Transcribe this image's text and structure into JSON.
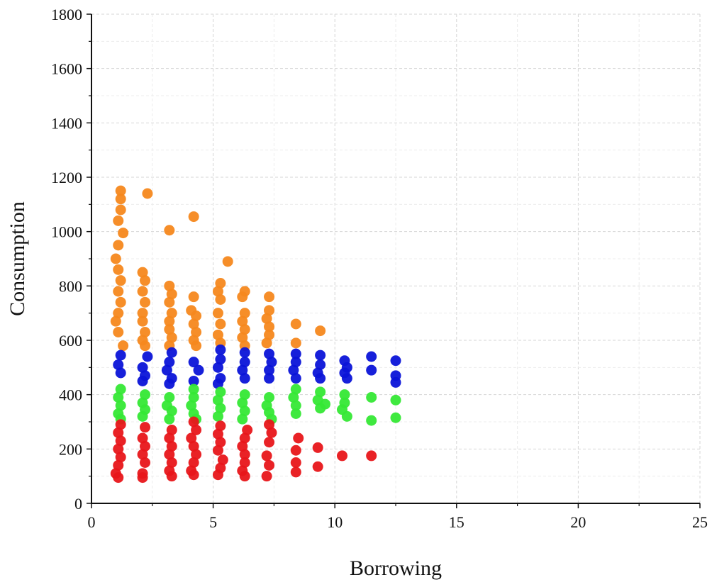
{
  "chart_data": {
    "type": "scatter",
    "title": "",
    "xlabel": "Borrowing",
    "ylabel": "Consumption",
    "xlim": [
      0,
      25
    ],
    "ylim": [
      0,
      1800
    ],
    "xticks": [
      0,
      5,
      10,
      15,
      20,
      25
    ],
    "yticks": [
      0,
      200,
      400,
      600,
      800,
      1000,
      1200,
      1400,
      1600,
      1800
    ],
    "grid": true,
    "legend": "none",
    "series": [
      {
        "color": "#f5881e",
        "points": [
          [
            1.2,
            1150
          ],
          [
            1.2,
            1120
          ],
          [
            1.2,
            1080
          ],
          [
            1.1,
            1040
          ],
          [
            1.3,
            995
          ],
          [
            1.1,
            950
          ],
          [
            1.0,
            900
          ],
          [
            1.1,
            860
          ],
          [
            1.2,
            820
          ],
          [
            1.1,
            780
          ],
          [
            1.2,
            740
          ],
          [
            1.1,
            700
          ],
          [
            1.0,
            670
          ],
          [
            1.1,
            630
          ],
          [
            1.3,
            580
          ],
          [
            2.3,
            1140
          ],
          [
            2.1,
            850
          ],
          [
            2.2,
            820
          ],
          [
            2.1,
            780
          ],
          [
            2.2,
            740
          ],
          [
            2.1,
            700
          ],
          [
            2.1,
            670
          ],
          [
            2.2,
            630
          ],
          [
            2.1,
            600
          ],
          [
            2.2,
            580
          ],
          [
            3.2,
            1005
          ],
          [
            3.2,
            800
          ],
          [
            3.3,
            770
          ],
          [
            3.2,
            740
          ],
          [
            3.3,
            700
          ],
          [
            3.2,
            670
          ],
          [
            3.2,
            640
          ],
          [
            3.3,
            610
          ],
          [
            3.2,
            580
          ],
          [
            4.2,
            1055
          ],
          [
            4.2,
            760
          ],
          [
            4.1,
            710
          ],
          [
            4.3,
            690
          ],
          [
            4.2,
            660
          ],
          [
            4.3,
            630
          ],
          [
            4.2,
            600
          ],
          [
            4.3,
            580
          ],
          [
            5.3,
            810
          ],
          [
            5.2,
            780
          ],
          [
            5.3,
            750
          ],
          [
            5.2,
            700
          ],
          [
            5.3,
            660
          ],
          [
            5.2,
            620
          ],
          [
            5.3,
            590
          ],
          [
            5.6,
            890
          ],
          [
            6.3,
            780
          ],
          [
            6.2,
            760
          ],
          [
            6.3,
            700
          ],
          [
            6.2,
            670
          ],
          [
            6.3,
            640
          ],
          [
            6.2,
            610
          ],
          [
            6.3,
            580
          ],
          [
            7.3,
            760
          ],
          [
            7.3,
            710
          ],
          [
            7.2,
            680
          ],
          [
            7.3,
            650
          ],
          [
            7.3,
            620
          ],
          [
            7.2,
            590
          ],
          [
            8.4,
            660
          ],
          [
            8.4,
            590
          ],
          [
            9.4,
            635
          ]
        ]
      },
      {
        "color": "#0b14d8",
        "points": [
          [
            1.2,
            545
          ],
          [
            1.1,
            510
          ],
          [
            1.2,
            480
          ],
          [
            2.3,
            540
          ],
          [
            2.1,
            500
          ],
          [
            2.2,
            470
          ],
          [
            2.1,
            450
          ],
          [
            3.3,
            555
          ],
          [
            3.2,
            520
          ],
          [
            3.1,
            490
          ],
          [
            3.3,
            460
          ],
          [
            3.2,
            440
          ],
          [
            4.2,
            520
          ],
          [
            4.4,
            490
          ],
          [
            4.2,
            450
          ],
          [
            5.3,
            565
          ],
          [
            5.3,
            530
          ],
          [
            5.2,
            500
          ],
          [
            5.3,
            460
          ],
          [
            5.2,
            440
          ],
          [
            6.3,
            555
          ],
          [
            6.3,
            520
          ],
          [
            6.2,
            490
          ],
          [
            6.3,
            460
          ],
          [
            7.3,
            550
          ],
          [
            7.4,
            520
          ],
          [
            7.3,
            490
          ],
          [
            7.3,
            460
          ],
          [
            8.4,
            550
          ],
          [
            8.4,
            520
          ],
          [
            8.3,
            490
          ],
          [
            8.4,
            460
          ],
          [
            9.4,
            545
          ],
          [
            9.4,
            510
          ],
          [
            9.3,
            480
          ],
          [
            9.4,
            460
          ],
          [
            10.4,
            525
          ],
          [
            10.5,
            500
          ],
          [
            10.4,
            480
          ],
          [
            10.5,
            460
          ],
          [
            11.5,
            540
          ],
          [
            11.5,
            490
          ],
          [
            12.5,
            525
          ],
          [
            12.5,
            470
          ],
          [
            12.5,
            445
          ]
        ]
      },
      {
        "color": "#35e835",
        "points": [
          [
            1.2,
            420
          ],
          [
            1.1,
            390
          ],
          [
            1.2,
            360
          ],
          [
            1.1,
            330
          ],
          [
            1.2,
            310
          ],
          [
            2.2,
            400
          ],
          [
            2.1,
            370
          ],
          [
            2.2,
            345
          ],
          [
            2.1,
            320
          ],
          [
            3.2,
            390
          ],
          [
            3.1,
            360
          ],
          [
            3.3,
            340
          ],
          [
            3.2,
            310
          ],
          [
            4.2,
            420
          ],
          [
            4.2,
            390
          ],
          [
            4.1,
            360
          ],
          [
            4.2,
            330
          ],
          [
            4.3,
            310
          ],
          [
            5.3,
            410
          ],
          [
            5.2,
            380
          ],
          [
            5.3,
            350
          ],
          [
            5.2,
            320
          ],
          [
            6.3,
            400
          ],
          [
            6.2,
            370
          ],
          [
            6.3,
            340
          ],
          [
            6.2,
            310
          ],
          [
            7.3,
            390
          ],
          [
            7.2,
            360
          ],
          [
            7.3,
            335
          ],
          [
            7.4,
            310
          ],
          [
            8.4,
            420
          ],
          [
            8.3,
            390
          ],
          [
            8.4,
            360
          ],
          [
            8.4,
            330
          ],
          [
            9.4,
            410
          ],
          [
            9.3,
            380
          ],
          [
            9.6,
            365
          ],
          [
            9.4,
            350
          ],
          [
            10.4,
            400
          ],
          [
            10.4,
            370
          ],
          [
            10.3,
            345
          ],
          [
            10.5,
            320
          ],
          [
            11.5,
            390
          ],
          [
            11.5,
            305
          ],
          [
            12.5,
            380
          ],
          [
            12.5,
            315
          ]
        ]
      },
      {
        "color": "#e8161a",
        "points": [
          [
            1.2,
            290
          ],
          [
            1.1,
            260
          ],
          [
            1.2,
            230
          ],
          [
            1.1,
            200
          ],
          [
            1.2,
            170
          ],
          [
            1.1,
            140
          ],
          [
            1.0,
            110
          ],
          [
            1.1,
            95
          ],
          [
            2.2,
            280
          ],
          [
            2.1,
            240
          ],
          [
            2.2,
            210
          ],
          [
            2.1,
            180
          ],
          [
            2.2,
            150
          ],
          [
            2.1,
            110
          ],
          [
            2.1,
            95
          ],
          [
            3.3,
            270
          ],
          [
            3.2,
            240
          ],
          [
            3.3,
            210
          ],
          [
            3.2,
            180
          ],
          [
            3.3,
            150
          ],
          [
            3.2,
            120
          ],
          [
            3.3,
            100
          ],
          [
            4.2,
            300
          ],
          [
            4.3,
            270
          ],
          [
            4.1,
            240
          ],
          [
            4.2,
            210
          ],
          [
            4.3,
            180
          ],
          [
            4.2,
            150
          ],
          [
            4.1,
            120
          ],
          [
            4.2,
            105
          ],
          [
            5.3,
            285
          ],
          [
            5.2,
            255
          ],
          [
            5.3,
            225
          ],
          [
            5.2,
            195
          ],
          [
            5.4,
            160
          ],
          [
            5.3,
            130
          ],
          [
            5.2,
            105
          ],
          [
            6.4,
            270
          ],
          [
            6.3,
            240
          ],
          [
            6.2,
            210
          ],
          [
            6.3,
            180
          ],
          [
            6.3,
            150
          ],
          [
            6.2,
            120
          ],
          [
            6.3,
            100
          ],
          [
            7.3,
            290
          ],
          [
            7.4,
            260
          ],
          [
            7.3,
            225
          ],
          [
            7.2,
            175
          ],
          [
            7.3,
            140
          ],
          [
            7.2,
            100
          ],
          [
            8.5,
            240
          ],
          [
            8.4,
            195
          ],
          [
            8.4,
            150
          ],
          [
            8.4,
            115
          ],
          [
            9.3,
            205
          ],
          [
            9.3,
            135
          ],
          [
            10.3,
            175
          ],
          [
            11.5,
            175
          ]
        ]
      }
    ]
  }
}
